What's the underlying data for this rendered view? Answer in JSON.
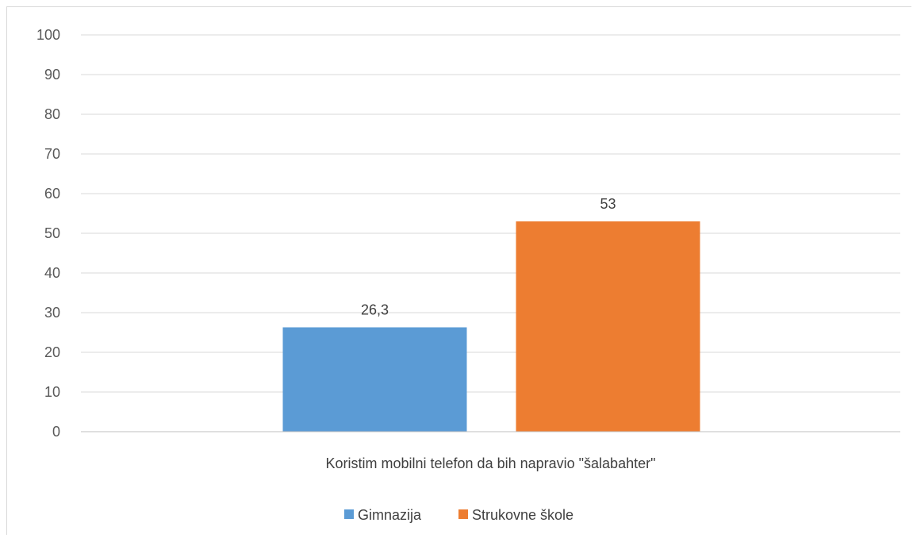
{
  "chart_data": {
    "type": "bar",
    "categories": [
      "Koristim mobilni telefon da bih napravio \"šalabahter\""
    ],
    "series": [
      {
        "name": "Gimnazija",
        "values": [
          26.3
        ],
        "label": "26,3",
        "color": "#5B9BD5"
      },
      {
        "name": "Strukovne škole",
        "values": [
          53
        ],
        "label": "53",
        "color": "#ED7D31"
      }
    ],
    "ylim": [
      0,
      100
    ],
    "yticks": [
      0,
      10,
      20,
      30,
      40,
      50,
      60,
      70,
      80,
      90,
      100
    ],
    "grid": true,
    "legend_position": "bottom",
    "gridline_color": "#d9d9d9",
    "axis_color": "#bfbfbf"
  }
}
